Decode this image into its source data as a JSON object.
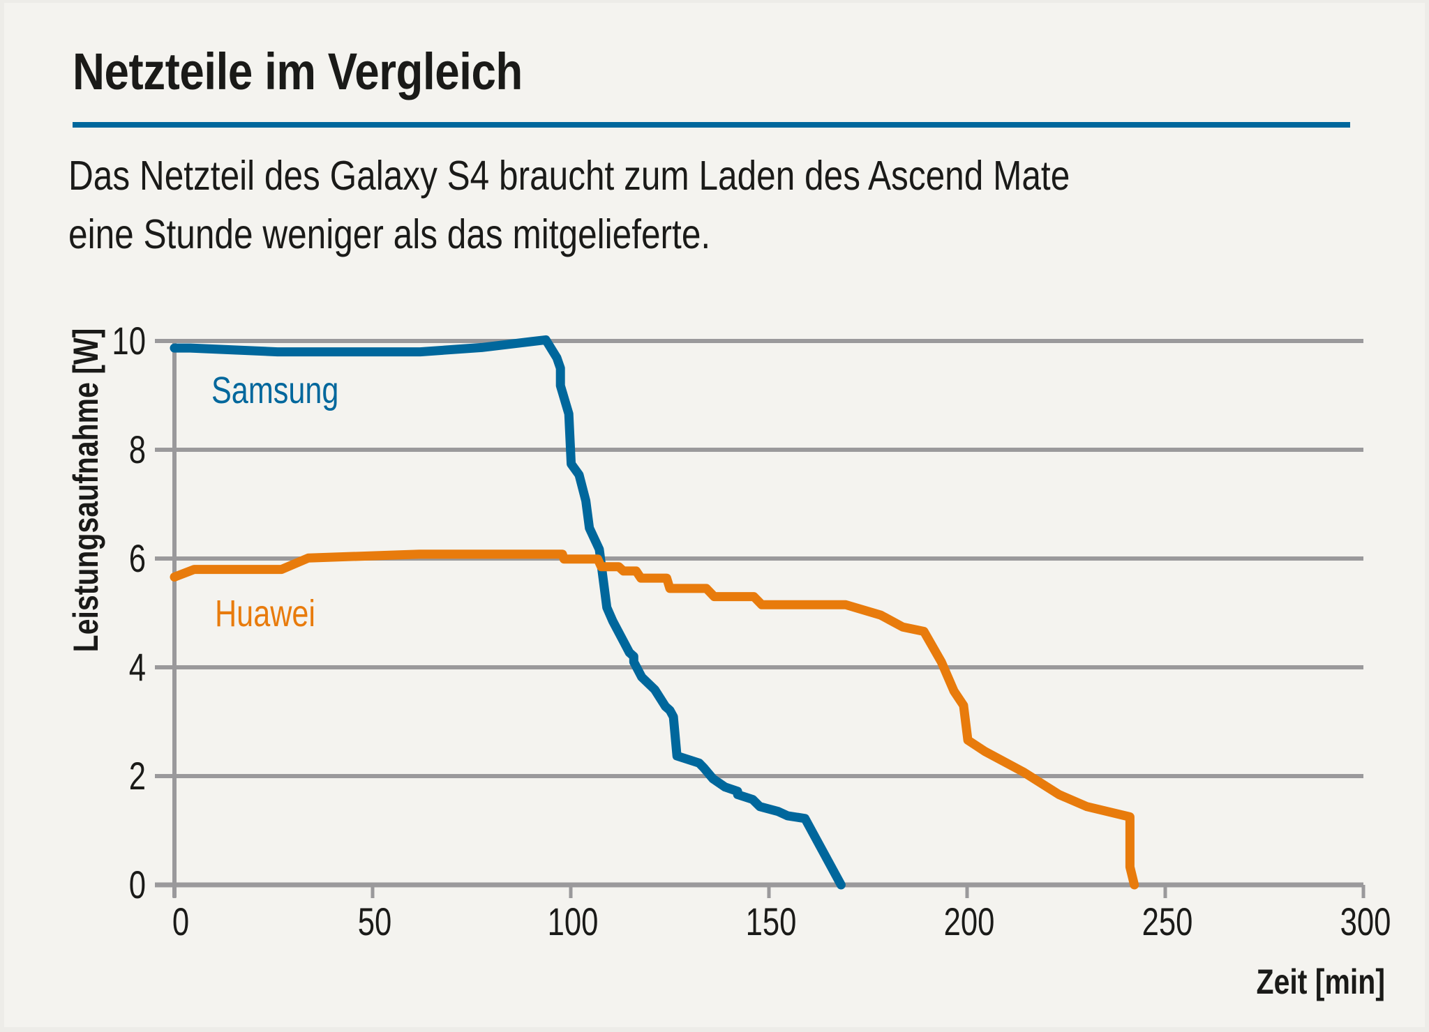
{
  "header": {
    "title": "Netzteile im Vergleich",
    "subtitle_lines": [
      "Das Netzteil des Galaxy S4 braucht zum Laden des Ascend Mate",
      "eine Stunde weniger als das mitgelieferte."
    ]
  },
  "colors": {
    "accent": "#00679c",
    "samsung": "#00679c",
    "huawei": "#e87b0c",
    "grid": "#9a999b",
    "background": "#f4f3ef",
    "text": "#1a1a18"
  },
  "chart_data": {
    "type": "line",
    "title": "Netzteile im Vergleich",
    "subtitle": "Das Netzteil des Galaxy S4 braucht zum Laden des Ascend Mate eine Stunde weniger als das mitgelieferte.",
    "xlabel": "Zeit [min]",
    "ylabel": "Leistungsaufnahme [W]",
    "xlim": [
      0,
      300
    ],
    "ylim": [
      0,
      10
    ],
    "xticks": [
      0,
      50,
      100,
      150,
      200,
      250,
      300
    ],
    "yticks": [
      0,
      2,
      4,
      6,
      8,
      10
    ],
    "grid": "horizontal",
    "legend": "inline labels near lines (top-left)",
    "series": [
      {
        "name": "Samsung",
        "color": "#00679c",
        "points": [
          [
            0,
            9.87
          ],
          [
            4,
            9.87
          ],
          [
            26,
            9.8
          ],
          [
            62,
            9.8
          ],
          [
            77.5,
            9.88
          ],
          [
            93.7,
            10.02
          ],
          [
            96.5,
            9.69
          ],
          [
            97.4,
            9.5
          ],
          [
            97.4,
            9.18
          ],
          [
            99.5,
            8.66
          ],
          [
            100.1,
            7.74
          ],
          [
            102.1,
            7.54
          ],
          [
            103.8,
            7.06
          ],
          [
            104.7,
            6.56
          ],
          [
            107.2,
            6.17
          ],
          [
            109.1,
            5.1
          ],
          [
            110.6,
            4.85
          ],
          [
            114.8,
            4.27
          ],
          [
            115.9,
            4.2
          ],
          [
            115.9,
            4.1
          ],
          [
            117.9,
            3.82
          ],
          [
            121.2,
            3.59
          ],
          [
            123.9,
            3.28
          ],
          [
            125.0,
            3.21
          ],
          [
            125.9,
            3.09
          ],
          [
            126.8,
            2.37
          ],
          [
            132.4,
            2.24
          ],
          [
            133.6,
            2.15
          ],
          [
            135.9,
            1.95
          ],
          [
            138.9,
            1.8
          ],
          [
            142.1,
            1.72
          ],
          [
            142.1,
            1.66
          ],
          [
            145.9,
            1.57
          ],
          [
            147.7,
            1.44
          ],
          [
            152.3,
            1.35
          ],
          [
            154.7,
            1.27
          ],
          [
            159.1,
            1.22
          ],
          [
            168.2,
            0
          ]
        ]
      },
      {
        "name": "Huawei",
        "color": "#e87b0c",
        "points": [
          [
            0,
            5.66
          ],
          [
            5,
            5.8
          ],
          [
            27,
            5.8
          ],
          [
            33.8,
            6.01
          ],
          [
            61.8,
            6.08
          ],
          [
            97.9,
            6.08
          ],
          [
            98.3,
            5.99
          ],
          [
            106.8,
            5.99
          ],
          [
            107.7,
            5.85
          ],
          [
            112.1,
            5.85
          ],
          [
            113.3,
            5.77
          ],
          [
            116.5,
            5.77
          ],
          [
            117.7,
            5.64
          ],
          [
            124.2,
            5.64
          ],
          [
            125.0,
            5.45
          ],
          [
            134.2,
            5.45
          ],
          [
            136.2,
            5.3
          ],
          [
            146.2,
            5.3
          ],
          [
            148.2,
            5.15
          ],
          [
            169.4,
            5.15
          ],
          [
            178.2,
            4.96
          ],
          [
            183.8,
            4.74
          ],
          [
            189.1,
            4.66
          ],
          [
            193.5,
            4.1
          ],
          [
            196.7,
            3.56
          ],
          [
            199.1,
            3.3
          ],
          [
            200.2,
            2.66
          ],
          [
            204.6,
            2.45
          ],
          [
            214.1,
            2.08
          ],
          [
            223.2,
            1.66
          ],
          [
            230.2,
            1.44
          ],
          [
            241.1,
            1.25
          ],
          [
            241.1,
            0.33
          ],
          [
            242.2,
            0
          ]
        ]
      }
    ]
  }
}
